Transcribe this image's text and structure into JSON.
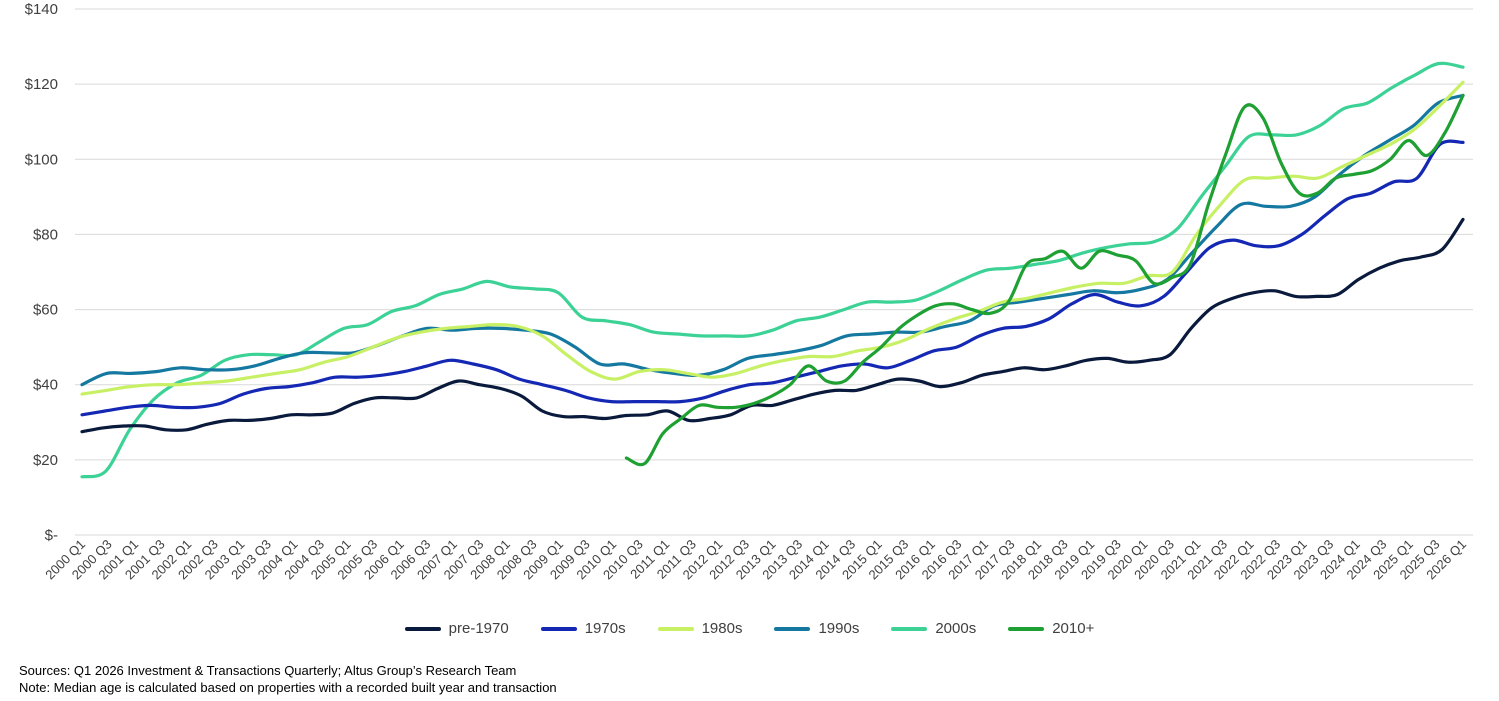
{
  "chart_data": {
    "type": "line",
    "title": "",
    "xlabel": "",
    "ylabel": "",
    "ylim": [
      0,
      140
    ],
    "yticks": [
      0,
      20,
      40,
      60,
      80,
      100,
      120,
      140
    ],
    "ytick_labels": [
      "$-",
      "$20",
      "$40",
      "$60",
      "$80",
      "$100",
      "$120",
      "$140"
    ],
    "grid": true,
    "legend_position": "bottom",
    "x_start": "2000 Q1",
    "x_end": "2026 Q1",
    "xtick_labels": [
      "2000 Q1",
      "2000 Q3",
      "2001 Q1",
      "2001 Q3",
      "2002 Q1",
      "2002 Q3",
      "2003 Q1",
      "2003 Q3",
      "2004 Q1",
      "2004 Q3",
      "2005 Q1",
      "2005 Q3",
      "2006 Q1",
      "2006 Q3",
      "2007 Q1",
      "2007 Q3",
      "2008 Q1",
      "2008 Q3",
      "2009 Q1",
      "2009 Q3",
      "2010 Q1",
      "2010 Q3",
      "2011 Q1",
      "2011 Q3",
      "2012 Q1",
      "2012 Q3",
      "2013 Q1",
      "2013 Q3",
      "2014 Q1",
      "2014 Q3",
      "2015 Q1",
      "2015 Q3",
      "2016 Q1",
      "2016 Q3",
      "2017 Q1",
      "2017 Q3",
      "2018 Q1",
      "2018 Q3",
      "2019 Q1",
      "2019 Q3",
      "2020 Q1",
      "2020 Q3",
      "2021 Q1",
      "2021 Q3",
      "2022 Q1",
      "2022 Q3",
      "2023 Q1",
      "2023 Q3",
      "2024 Q1",
      "2024 Q3",
      "2025 Q1",
      "2025 Q3",
      "2026 Q1"
    ],
    "series": [
      {
        "name": "pre-1970",
        "color": "#0a1a3c",
        "start_index": 0,
        "values": [
          27.5,
          28.5,
          29,
          29,
          28,
          28,
          29.5,
          30.5,
          30.5,
          31,
          32,
          32,
          32.5,
          35,
          36.5,
          36.5,
          36.5,
          39,
          41,
          40,
          39,
          37,
          33,
          31.5,
          31.5,
          31,
          31.8,
          32,
          33,
          30.5,
          31,
          32,
          34.5,
          34.5,
          36,
          37.5,
          38.5,
          38.5,
          40,
          41.5,
          41,
          39.5,
          40.5,
          42.5,
          43.5,
          44.5,
          44,
          45,
          46.5,
          47,
          46,
          46.5,
          48,
          55,
          60.5,
          63,
          64.5,
          65,
          63.5,
          63.5,
          64,
          68,
          71,
          73,
          74,
          76,
          84
        ]
      },
      {
        "name": "1970s",
        "color": "#1428b4",
        "start_index": 0,
        "values": [
          32,
          33,
          34,
          34.5,
          34,
          34,
          35,
          37.5,
          39,
          39.5,
          40.5,
          42,
          42,
          42.5,
          43.5,
          45,
          46.5,
          45.5,
          44,
          41.5,
          40,
          38.5,
          36.5,
          35.5,
          35.5,
          35.5,
          35.5,
          36.5,
          38.5,
          40,
          40.5,
          42,
          43.5,
          45,
          45.5,
          44.5,
          46.5,
          49,
          50,
          53,
          55,
          55.5,
          57.5,
          61.5,
          64,
          62,
          61,
          63.5,
          70,
          76.5,
          78.5,
          77,
          77,
          80,
          85,
          89.5,
          91,
          94,
          95,
          104,
          104.5
        ]
      },
      {
        "name": "1980s",
        "color": "#c8f064",
        "start_index": 0,
        "values": [
          37.5,
          38.5,
          39.5,
          40,
          40,
          40.5,
          41,
          42,
          43,
          44,
          46,
          47.5,
          50,
          52.5,
          54,
          55,
          55.5,
          56,
          55.5,
          53,
          48,
          43.5,
          41.5,
          43.5,
          44,
          43,
          42,
          43,
          45,
          46.5,
          47.5,
          47.5,
          49,
          50,
          52,
          55,
          57.5,
          59.5,
          62,
          63,
          64.5,
          66,
          67,
          67,
          69,
          70,
          80,
          88,
          94.5,
          95,
          95.5,
          95,
          98,
          101,
          104,
          108,
          114,
          120.5
        ]
      },
      {
        "name": "1990s",
        "color": "#1478a0",
        "start_index": 0,
        "values": [
          40,
          43,
          43,
          43.5,
          44.5,
          44,
          44,
          45,
          47,
          48.5,
          48.5,
          48.5,
          50.5,
          53,
          55,
          54.5,
          55,
          55,
          54.5,
          53.5,
          50,
          45.5,
          45.5,
          44,
          43,
          42.5,
          44,
          47,
          48,
          49,
          50.5,
          53,
          53.5,
          54,
          54,
          55.5,
          57,
          61,
          62,
          63,
          64,
          65,
          64.5,
          65.5,
          68,
          75,
          82,
          88,
          87.5,
          87.5,
          90,
          96,
          101,
          105,
          109,
          115,
          117
        ]
      },
      {
        "name": "2000s",
        "color": "#3cd296",
        "start_index": 0,
        "values": [
          15.5,
          17,
          28,
          36,
          40.5,
          42.5,
          46.5,
          48,
          48,
          48,
          51.5,
          55,
          56,
          59.5,
          61,
          64,
          65.5,
          67.5,
          66,
          65.5,
          64.5,
          58,
          57,
          56,
          54,
          53.5,
          53,
          53,
          53,
          54.5,
          57,
          58,
          60,
          62,
          62,
          62.5,
          65,
          68,
          70.5,
          71,
          72,
          73,
          75,
          76.5,
          77.5,
          78,
          81.5,
          90,
          98,
          106,
          106.5,
          106.5,
          109,
          113.5,
          115,
          119,
          122.5,
          125.5,
          124.5
        ]
      },
      {
        "name": "2010+",
        "color": "#1ea032",
        "start_index": 41,
        "values": [
          20.5,
          19,
          27,
          31,
          34.5,
          34,
          34,
          35,
          37,
          40,
          45,
          41,
          41,
          46,
          50,
          55,
          58.5,
          61,
          61.5,
          60,
          59,
          62,
          72,
          73.5,
          75.5,
          71,
          75.5,
          74.5,
          73,
          67,
          68.5,
          72,
          88,
          102,
          114,
          111,
          99,
          91,
          91,
          95,
          96,
          97,
          100,
          105,
          101,
          107,
          117
        ]
      }
    ]
  },
  "legend": {
    "items": [
      {
        "label": "pre-1970",
        "color": "#0a1a3c"
      },
      {
        "label": "1970s",
        "color": "#1428b4"
      },
      {
        "label": "1980s",
        "color": "#c8f064"
      },
      {
        "label": "1990s",
        "color": "#1478a0"
      },
      {
        "label": "2000s",
        "color": "#3cd296"
      },
      {
        "label": "2010+",
        "color": "#1ea032"
      }
    ]
  },
  "notes": {
    "sources": "Sources: Q1 2026 Investment & Transactions Quarterly; Altus Group’s Research Team",
    "note": "Note: Median age is calculated based on properties with a recorded built year and transaction"
  }
}
